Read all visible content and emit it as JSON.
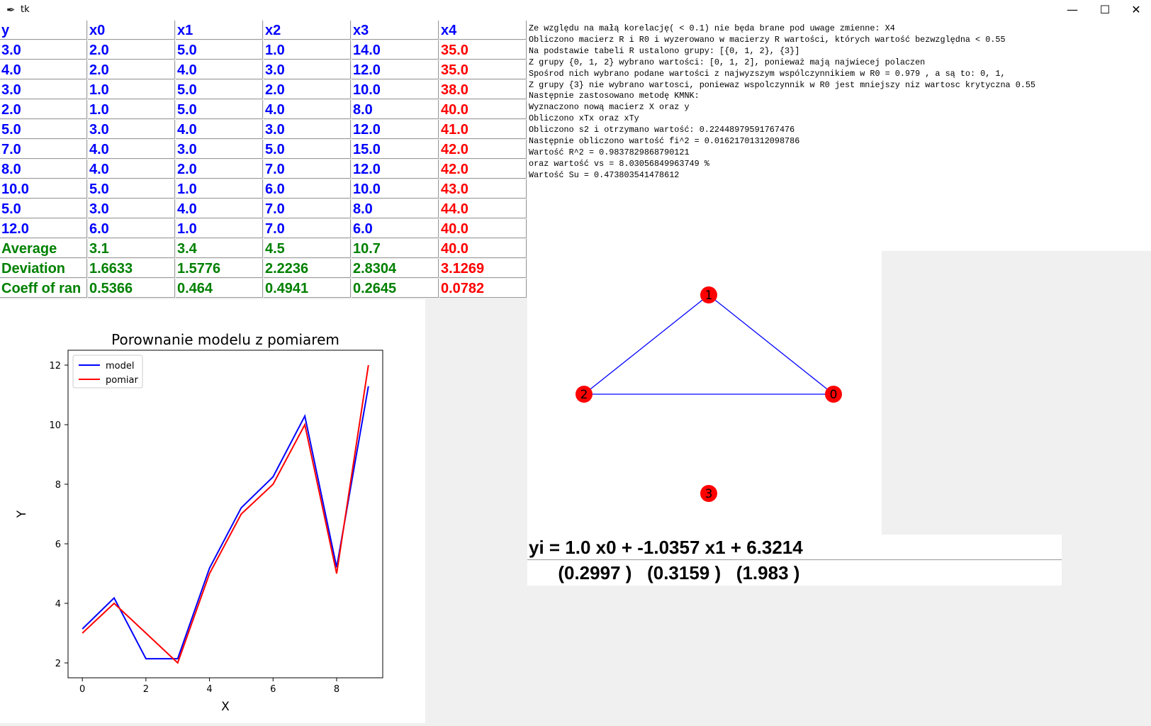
{
  "window": {
    "title": "tk",
    "min_glyph": "—",
    "max_glyph": "☐",
    "close_glyph": "✕"
  },
  "table": {
    "headers": [
      "y",
      "x0",
      "x1",
      "x2",
      "x3",
      "x4"
    ],
    "rows": [
      [
        "3.0",
        "2.0",
        "5.0",
        "1.0",
        "14.0",
        "35.0"
      ],
      [
        "4.0",
        "2.0",
        "4.0",
        "3.0",
        "12.0",
        "35.0"
      ],
      [
        "3.0",
        "1.0",
        "5.0",
        "2.0",
        "10.0",
        "38.0"
      ],
      [
        "2.0",
        "1.0",
        "5.0",
        "4.0",
        "8.0",
        "40.0"
      ],
      [
        "5.0",
        "3.0",
        "4.0",
        "3.0",
        "12.0",
        "41.0"
      ],
      [
        "7.0",
        "4.0",
        "3.0",
        "5.0",
        "15.0",
        "42.0"
      ],
      [
        "8.0",
        "4.0",
        "2.0",
        "7.0",
        "12.0",
        "42.0"
      ],
      [
        "10.0",
        "5.0",
        "1.0",
        "6.0",
        "10.0",
        "43.0"
      ],
      [
        "5.0",
        "3.0",
        "4.0",
        "7.0",
        "8.0",
        "44.0"
      ],
      [
        "12.0",
        "6.0",
        "1.0",
        "7.0",
        "6.0",
        "40.0"
      ]
    ],
    "stats": [
      [
        "Average",
        "3.1",
        "3.4",
        "4.5",
        "10.7",
        "40.0"
      ],
      [
        "Deviation",
        "1.6633",
        "1.5776",
        "2.2236",
        "2.8304",
        "3.1269"
      ],
      [
        "Coeff of ran",
        "0.5366",
        "0.464",
        "0.4941",
        "0.2645",
        "0.0782"
      ]
    ],
    "colors": {
      "data": "#0000ff",
      "stats": "#008000",
      "excluded": "#ff0000"
    }
  },
  "log": {
    "lines": [
      "Ze względu na małą korelację( < 0.1) nie będa brane pod uwage zmienne: X4",
      "Obliczono macierz R i R0 i wyzerowano w macierzy R wartości, których wartość bezwzględna < 0.55",
      "Na podstawie tabeli R ustalono grupy: [{0, 1, 2}, {3}]",
      "Z grupy {0, 1, 2} wybrano wartości: [0, 1, 2], ponieważ mają najwiecej polaczen",
      "Spośrod nich wybrano podane wartości z najwyzszym wspólczynnikiem w R0 = 0.979 , a są to: 0, 1,",
      "Z grupy {3} nie wybrano wartosci, poniewaz wspolczynnik w R0 jest mniejszy niz wartosc krytyczna 0.55",
      "Następnie zastosowano metodę KMNK:",
      "Wyznaczono nową macierz X oraz y",
      "Obliczono xTx oraz xTy",
      "Obliczono s2 i otrzymano wartość: 0.22448979591767476",
      "Następnie obliczono wartość fi^2 = 0.01621701312098786",
      "Wartość R^2 = 0.9837829868790121",
      "oraz wartość vs = 8.03056849963749 %",
      "Wartość Su = 0.473803541478612"
    ]
  },
  "chart_data": {
    "type": "line",
    "title": "Porownanie modelu z pomiarem",
    "xlabel": "X",
    "ylabel": "Y",
    "x": [
      0,
      1,
      2,
      3,
      4,
      5,
      6,
      7,
      8,
      9
    ],
    "xlim": [
      -0.45,
      9.45
    ],
    "ylim": [
      1.5,
      12.5
    ],
    "xticks": [
      0,
      2,
      4,
      6,
      8
    ],
    "yticks": [
      2,
      4,
      6,
      8,
      10,
      12
    ],
    "grid": false,
    "legend_position": "top-left",
    "series": [
      {
        "name": "model",
        "color": "#0000ff",
        "values": [
          3.14,
          4.18,
          2.14,
          2.14,
          5.18,
          7.21,
          8.25,
          10.29,
          5.21,
          11.29
        ]
      },
      {
        "name": "pomiar",
        "color": "#ff0000",
        "values": [
          3.0,
          4.0,
          3.0,
          2.0,
          5.0,
          7.0,
          8.0,
          10.0,
          5.0,
          12.0
        ]
      }
    ]
  },
  "graph": {
    "node_color": "#ff0000",
    "edge_color": "#0000ff",
    "nodes": [
      {
        "label": "1"
      },
      {
        "label": "2"
      },
      {
        "label": "0"
      },
      {
        "label": "3"
      }
    ],
    "edges": [
      [
        "1",
        "2"
      ],
      [
        "1",
        "0"
      ],
      [
        "2",
        "0"
      ]
    ]
  },
  "equation": {
    "main": "yi = 1.0 x0 + -1.0357 x1 + 6.3214",
    "errors": "      (0.2997 )   (0.3159 )   (1.983 )"
  }
}
